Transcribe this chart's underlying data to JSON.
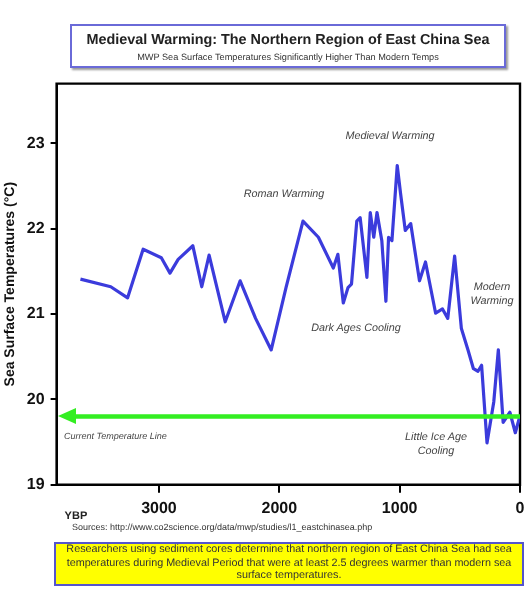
{
  "chart_data": {
    "type": "line",
    "title": "Medieval Warming: The Northern Region of East China Sea",
    "subtitle": "MWP Sea Surface Temperatures Significantly Higher Than Modern Temps",
    "xlabel": "YBP",
    "ylabel": "Sea Surface Temperatures (°C)",
    "x": [
      3652,
      3400,
      3260,
      3131,
      2980,
      2908,
      2840,
      2718,
      2644,
      2583,
      2449,
      2325,
      2197,
      2067,
      1944,
      1803,
      1675,
      1551,
      1513,
      1468,
      1429,
      1400,
      1356,
      1328,
      1272,
      1244,
      1215,
      1188,
      1148,
      1114,
      1092,
      1064,
      1020,
      992,
      953,
      908,
      835,
      785,
      701,
      644,
      600,
      543,
      487,
      432,
      387,
      349,
      319,
      274,
      218,
      180,
      140,
      84,
      39,
      0
    ],
    "series": [
      {
        "color": "#3b3bdc",
        "values": [
          21.41,
          21.32,
          21.19,
          21.76,
          21.66,
          21.48,
          21.64,
          21.8,
          21.32,
          21.69,
          20.91,
          21.39,
          20.95,
          20.58,
          21.31,
          22.09,
          21.9,
          21.54,
          21.7,
          21.13,
          21.31,
          21.35,
          22.09,
          22.13,
          21.43,
          22.19,
          21.9,
          22.19,
          21.86,
          21.15,
          21.9,
          21.86,
          22.74,
          22.41,
          21.98,
          22.06,
          21.39,
          21.61,
          21.01,
          21.06,
          20.95,
          21.68,
          20.83,
          20.58,
          20.36,
          20.33,
          20.4,
          19.49,
          19.97,
          20.58,
          19.73,
          19.85,
          19.61,
          19.81
        ]
      }
    ],
    "xlim": [
      3850,
      0
    ],
    "xticks": [
      3000,
      2000,
      1000,
      0
    ],
    "ylim": [
      19,
      23.7
    ],
    "yticks": [
      19,
      20,
      21,
      22,
      23
    ],
    "grid": false,
    "legend": false,
    "marker": "none",
    "line_style": "solid",
    "ref_lines": [
      {
        "axis": "y",
        "value": 19.8,
        "color": "#33ee22"
      }
    ],
    "annotations": [
      "Roman Warming",
      "Medieval Warming",
      "Dark Ages Cooling",
      "Modern Warming",
      "Little Ice Age Cooling",
      "Current Temperature Line",
      "Sources: http://www.co2science.org/data/mwp/studies/l1_eastchinasea.php",
      "Researchers using sediment cores determine that northern region of East China Sea had sea temperatures during Medieval Period that were at least 2.5 degrees warmer than modern sea surface temperatures."
    ]
  }
}
